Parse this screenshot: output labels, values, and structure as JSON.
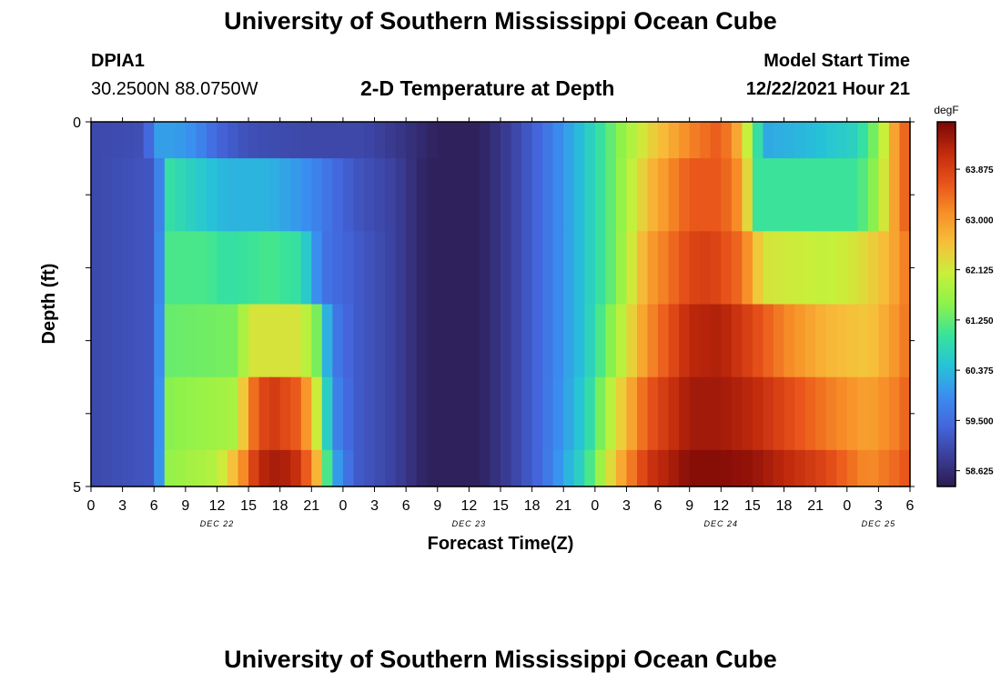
{
  "header": {
    "title": "University of Southern Mississippi Ocean Cube",
    "station_id": "DPIA1",
    "station_coords": "30.2500N  88.0750W",
    "plot_title": "2-D Temperature at Depth",
    "model_start_label": "Model Start Time",
    "model_start_value": "12/22/2021 Hour 21"
  },
  "footer": {
    "title_repeat": "University of Southern Mississippi Ocean Cube"
  },
  "chart_data": {
    "type": "heatmap",
    "xlabel": "Forecast Time(Z)",
    "ylabel": "Depth (ft)",
    "x_tick_labels": [
      "0",
      "3",
      "6",
      "9",
      "12",
      "15",
      "18",
      "21",
      "0",
      "3",
      "6",
      "9",
      "12",
      "15",
      "18",
      "21",
      "0",
      "3",
      "6",
      "9",
      "12",
      "15",
      "18",
      "21",
      "0",
      "3",
      "6"
    ],
    "date_labels": [
      {
        "label": "DEC 22",
        "tick_index": 4
      },
      {
        "label": "DEC 23",
        "tick_index": 12
      },
      {
        "label": "DEC 24",
        "tick_index": 20
      },
      {
        "label": "DEC 25",
        "tick_index": 25
      }
    ],
    "y_tick_labels": [
      "0",
      "5"
    ],
    "ylim": [
      0,
      5
    ],
    "x_range_hours": [
      0,
      78
    ],
    "colorbar": {
      "unit": "degF",
      "tick_labels": [
        "63.875",
        "63.000",
        "62.125",
        "61.250",
        "60.375",
        "59.500",
        "58.625"
      ],
      "tick_values": [
        63.875,
        63.0,
        62.125,
        61.25,
        60.375,
        59.5,
        58.625
      ],
      "min": 58.35,
      "max": 64.7,
      "colors": [
        "#2c1a4e",
        "#3b3f9a",
        "#4466dd",
        "#3a8ff0",
        "#26c4d6",
        "#39e39a",
        "#8cf24a",
        "#c8f03a",
        "#f7c03a",
        "#f78f28",
        "#e8521a",
        "#c02a0c",
        "#7a0606"
      ]
    },
    "depth_layers": [
      0.5,
      1.5,
      2.5,
      3.5,
      4.5,
      5.0
    ],
    "series": [
      {
        "name": "0.5 ft",
        "keys": [
          [
            0,
            59.0
          ],
          [
            5,
            59.1
          ],
          [
            6.5,
            60.1
          ],
          [
            8,
            60.1
          ],
          [
            10,
            59.9
          ],
          [
            12,
            59.4
          ],
          [
            15,
            59.1
          ],
          [
            20,
            59.0
          ],
          [
            26,
            59.0
          ],
          [
            30,
            58.7
          ],
          [
            33,
            58.45
          ],
          [
            37,
            58.45
          ],
          [
            40,
            58.9
          ],
          [
            43,
            59.5
          ],
          [
            47,
            60.5
          ],
          [
            50,
            61.4
          ],
          [
            53,
            62.3
          ],
          [
            57,
            63.2
          ],
          [
            60,
            63.6
          ],
          [
            62,
            62.6
          ],
          [
            63.5,
            60.9
          ],
          [
            64.5,
            60.2
          ],
          [
            69,
            60.4
          ],
          [
            73,
            60.7
          ],
          [
            75,
            61.6
          ],
          [
            76,
            62.5
          ],
          [
            77,
            63.3
          ],
          [
            78,
            63.6
          ]
        ]
      },
      {
        "name": "1.5 ft",
        "keys": [
          [
            0,
            59.0
          ],
          [
            6,
            59.2
          ],
          [
            7.5,
            60.9
          ],
          [
            10,
            60.6
          ],
          [
            13,
            60.3
          ],
          [
            17,
            60.3
          ],
          [
            20,
            60.0
          ],
          [
            25,
            59.2
          ],
          [
            29,
            58.9
          ],
          [
            32,
            58.45
          ],
          [
            37,
            58.45
          ],
          [
            40,
            58.9
          ],
          [
            43,
            59.5
          ],
          [
            47,
            60.5
          ],
          [
            50,
            61.4
          ],
          [
            53,
            62.6
          ],
          [
            57,
            63.6
          ],
          [
            60,
            63.6
          ],
          [
            62,
            63.0
          ],
          [
            63.5,
            61.0
          ],
          [
            70,
            61.0
          ],
          [
            73,
            61.0
          ],
          [
            74.5,
            61.5
          ],
          [
            76,
            62.5
          ],
          [
            77,
            63.3
          ],
          [
            78,
            63.6
          ]
        ]
      },
      {
        "name": "2.5 ft",
        "keys": [
          [
            0,
            59.0
          ],
          [
            6,
            59.2
          ],
          [
            7.5,
            61.1
          ],
          [
            11,
            61.1
          ],
          [
            13,
            60.9
          ],
          [
            17,
            61.1
          ],
          [
            20,
            60.9
          ],
          [
            22,
            59.6
          ],
          [
            25,
            59.3
          ],
          [
            29,
            58.9
          ],
          [
            32,
            58.45
          ],
          [
            37,
            58.45
          ],
          [
            40,
            58.9
          ],
          [
            43,
            59.5
          ],
          [
            47,
            60.5
          ],
          [
            50,
            61.4
          ],
          [
            53,
            62.9
          ],
          [
            57,
            63.8
          ],
          [
            59,
            63.9
          ],
          [
            62,
            63.4
          ],
          [
            64,
            62.2
          ],
          [
            70,
            62.0
          ],
          [
            73,
            62.2
          ],
          [
            76,
            62.7
          ],
          [
            78,
            63.4
          ]
        ]
      },
      {
        "name": "3.5 ft",
        "keys": [
          [
            0,
            59.0
          ],
          [
            6,
            59.2
          ],
          [
            7.5,
            61.3
          ],
          [
            14,
            61.4
          ],
          [
            15,
            62.2
          ],
          [
            20,
            62.2
          ],
          [
            21.5,
            61.4
          ],
          [
            23,
            59.7
          ],
          [
            25,
            59.3
          ],
          [
            29,
            58.9
          ],
          [
            32,
            58.45
          ],
          [
            37,
            58.45
          ],
          [
            40,
            58.9
          ],
          [
            43,
            59.5
          ],
          [
            47,
            60.5
          ],
          [
            50,
            61.7
          ],
          [
            53,
            63.1
          ],
          [
            57,
            64.2
          ],
          [
            60,
            64.3
          ],
          [
            63,
            63.8
          ],
          [
            66,
            63.2
          ],
          [
            70,
            62.7
          ],
          [
            74,
            62.5
          ],
          [
            76,
            62.9
          ],
          [
            78,
            63.4
          ]
        ]
      },
      {
        "name": "4.5 ft",
        "keys": [
          [
            0,
            59.0
          ],
          [
            6,
            59.2
          ],
          [
            7.5,
            61.5
          ],
          [
            14,
            61.8
          ],
          [
            15,
            63.2
          ],
          [
            17,
            64.0
          ],
          [
            20,
            63.5
          ],
          [
            21.5,
            62.1
          ],
          [
            23,
            59.9
          ],
          [
            25,
            59.3
          ],
          [
            29,
            58.9
          ],
          [
            32,
            58.45
          ],
          [
            37,
            58.45
          ],
          [
            40,
            58.9
          ],
          [
            43,
            59.5
          ],
          [
            47,
            60.6
          ],
          [
            50,
            62.2
          ],
          [
            53,
            63.6
          ],
          [
            57,
            64.4
          ],
          [
            60,
            64.4
          ],
          [
            63,
            64.2
          ],
          [
            66,
            63.8
          ],
          [
            70,
            63.3
          ],
          [
            74,
            62.9
          ],
          [
            77,
            63.3
          ],
          [
            78,
            63.6
          ]
        ]
      },
      {
        "name": "5.0 ft",
        "keys": [
          [
            0,
            59.0
          ],
          [
            6,
            59.2
          ],
          [
            7.5,
            61.6
          ],
          [
            12,
            61.9
          ],
          [
            14,
            62.8
          ],
          [
            16,
            64.2
          ],
          [
            18,
            64.4
          ],
          [
            20,
            64.0
          ],
          [
            21.5,
            62.7
          ],
          [
            23,
            60.3
          ],
          [
            25,
            59.3
          ],
          [
            29,
            58.9
          ],
          [
            32,
            58.45
          ],
          [
            37,
            58.45
          ],
          [
            40,
            58.9
          ],
          [
            43,
            59.5
          ],
          [
            47,
            60.8
          ],
          [
            50,
            62.6
          ],
          [
            53,
            64.0
          ],
          [
            57,
            64.6
          ],
          [
            60,
            64.6
          ],
          [
            63,
            64.5
          ],
          [
            66,
            64.2
          ],
          [
            70,
            63.8
          ],
          [
            74,
            63.1
          ],
          [
            77,
            63.5
          ],
          [
            78,
            63.7
          ]
        ]
      }
    ]
  }
}
